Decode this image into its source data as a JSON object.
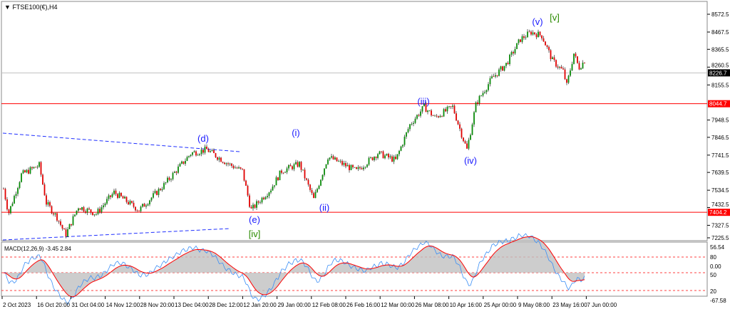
{
  "window": {
    "title": "FTSE100(€),H4",
    "collapse_icon": "triangle-down-icon"
  },
  "colors": {
    "bull": "#0a8a0a",
    "bear": "#e00000",
    "wick": "#000000",
    "level_line": "#ff0000",
    "trendline": "#2030ff",
    "wave_blue": "#1a1aff",
    "wave_green": "#2a8a00",
    "macd_hist": "#c0c0c0",
    "macd_signal": "#ff0000",
    "macd_line": "#3a8ef6"
  },
  "price_axis": {
    "ticks": [
      "8572.5",
      "8467.5",
      "8365.5",
      "8260.5",
      "8155.5",
      "7948.5",
      "7846.5",
      "7741.5",
      "7639.5",
      "7534.5",
      "7432.5",
      "7327.5",
      "7225.5"
    ],
    "current_price": "8226.7",
    "levels": [
      "8044.7",
      "7404.2"
    ]
  },
  "time_axis": [
    "2 Oct 2023",
    "16 Oct 20:00",
    "31 Oct 04:00",
    "14 Nov 12:00",
    "28 Nov 20:00",
    "13 Dec 04:00",
    "28 Dec 12:00",
    "12 Jan 20:00",
    "29 Jan 00:00",
    "12 Feb 08:00",
    "26 Feb 16:00",
    "12 Mar 00:00",
    "26 Mar 08:00",
    "10 Apr 16:00",
    "25 Apr 00:00",
    "9 May 08:00",
    "23 May 16:00",
    "7 Jun 00:00"
  ],
  "macd": {
    "label": "MACD(12,26,9) -3.45 2.84",
    "axis": [
      "56.54",
      "80",
      "0.00",
      "50",
      "20",
      "-67.58"
    ]
  },
  "chart_data": {
    "type": "candlestick",
    "symbol": "FTSE100(€)",
    "timeframe": "H4",
    "ylim": [
      7225.5,
      8572.5
    ],
    "price_path": [
      7543,
      7396,
      7627,
      7682,
      7459,
      7375,
      7270,
      7438,
      7396,
      7522,
      7417,
      7565,
      7753,
      7774,
      7690,
      7648,
      7417,
      7543,
      7648,
      7690,
      7481,
      7732,
      7648,
      7753,
      7711,
      7921,
      8026,
      7963,
      8026,
      7858,
      7774,
      8048,
      8194,
      8278,
      8425,
      8467,
      8446,
      8299,
      8236,
      8152,
      8341,
      8257,
      8299,
      8228
    ],
    "horizontal_levels": [
      8044.7,
      7404.2
    ],
    "current_price": 8226.7,
    "wave_labels": [
      {
        "text": "(d)",
        "color": "blue"
      },
      {
        "text": "(e)",
        "color": "blue"
      },
      {
        "text": "[iv]",
        "color": "green"
      },
      {
        "text": "(i)",
        "color": "blue"
      },
      {
        "text": "(ii)",
        "color": "blue"
      },
      {
        "text": "(iii)",
        "color": "blue"
      },
      {
        "text": "(iv)",
        "color": "blue"
      },
      {
        "text": "(v)",
        "color": "blue"
      },
      {
        "text": "[v]",
        "color": "green"
      }
    ]
  }
}
